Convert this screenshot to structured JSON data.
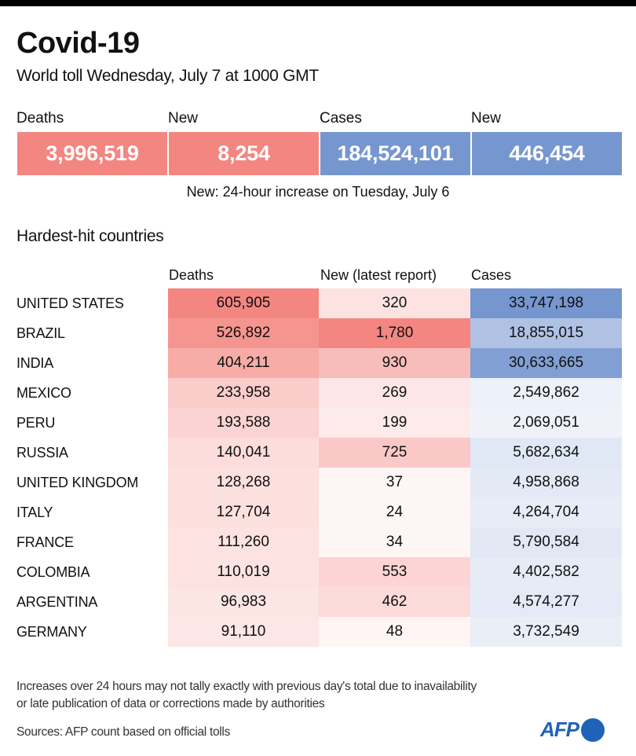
{
  "header": {
    "title": "Covid-19",
    "subtitle": "World toll Wednesday, July 7 at 1000 GMT"
  },
  "world": {
    "items": [
      {
        "label": "Deaths",
        "value": "3,996,519",
        "color": "#f38681"
      },
      {
        "label": "New",
        "value": "8,254",
        "color": "#f38681"
      },
      {
        "label": "Cases",
        "value": "184,524,101",
        "color": "#7696cf"
      },
      {
        "label": "New",
        "value": "446,454",
        "color": "#7696cf"
      }
    ],
    "note": "New: 24-hour increase on Tuesday, July 6"
  },
  "section_title": "Hardest-hit countries",
  "chart_data": {
    "type": "table",
    "title": "Hardest-hit countries",
    "columns": [
      "Deaths",
      "New (latest report)",
      "Cases"
    ],
    "rows": [
      {
        "country": "UNITED STATES",
        "deaths": 605905,
        "new": 320,
        "cases": 33747198
      },
      {
        "country": "BRAZIL",
        "deaths": 526892,
        "new": 1780,
        "cases": 18855015
      },
      {
        "country": "INDIA",
        "deaths": 404211,
        "new": 930,
        "cases": 30633665
      },
      {
        "country": "MEXICO",
        "deaths": 233958,
        "new": 269,
        "cases": 2549862
      },
      {
        "country": "PERU",
        "deaths": 193588,
        "new": 199,
        "cases": 2069051
      },
      {
        "country": "RUSSIA",
        "deaths": 140041,
        "new": 725,
        "cases": 5682634
      },
      {
        "country": "UNITED KINGDOM",
        "deaths": 128268,
        "new": 37,
        "cases": 4958868
      },
      {
        "country": "ITALY",
        "deaths": 127704,
        "new": 24,
        "cases": 4264704
      },
      {
        "country": "FRANCE",
        "deaths": 111260,
        "new": 34,
        "cases": 5790584
      },
      {
        "country": "COLOMBIA",
        "deaths": 110019,
        "new": 553,
        "cases": 4402582
      },
      {
        "country": "ARGENTINA",
        "deaths": 96983,
        "new": 462,
        "cases": 4574277
      },
      {
        "country": "GERMANY",
        "deaths": 91110,
        "new": 48,
        "cases": 3732549
      }
    ],
    "colors": {
      "deaths_new": "#f38681",
      "cases": "#7696cf",
      "base": "#ffffff"
    }
  },
  "footer": {
    "footnote_line1": "Increases over 24 hours may not tally exactly with previous day's total due to inavailability",
    "footnote_line2": "or late publication of data or corrections made by authorities",
    "sources": "Sources: AFP count based on official tolls",
    "logo": "AFP"
  }
}
